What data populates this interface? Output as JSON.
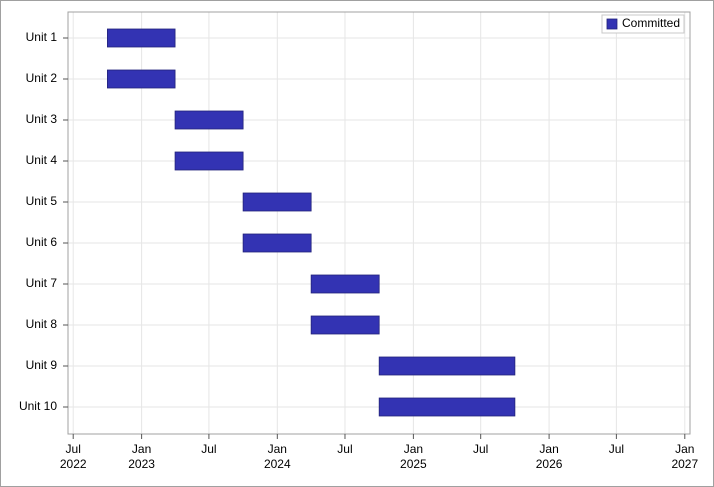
{
  "chart_data": {
    "type": "gantt",
    "categories": [
      "Unit 1",
      "Unit 2",
      "Unit 3",
      "Unit 4",
      "Unit 5",
      "Unit 6",
      "Unit 7",
      "Unit 8",
      "Unit 9",
      "Unit 10"
    ],
    "series": [
      {
        "name": "Committed",
        "color": "#3333b3",
        "start": [
          "2022-10-01",
          "2022-10-01",
          "2023-04-01",
          "2023-04-01",
          "2023-10-01",
          "2023-10-01",
          "2024-04-01",
          "2024-04-01",
          "2024-10-01",
          "2024-10-01"
        ],
        "end": [
          "2023-04-01",
          "2023-04-01",
          "2023-10-01",
          "2023-10-01",
          "2024-04-01",
          "2024-04-01",
          "2024-10-01",
          "2024-10-01",
          "2025-10-01",
          "2025-10-01"
        ]
      }
    ],
    "xlim": [
      "2022-06-17",
      "2027-01-15"
    ],
    "xticks": [
      {
        "value": "2022-07-01",
        "label": [
          "Jul",
          "2022"
        ]
      },
      {
        "value": "2023-01-01",
        "label": [
          "Jan",
          "2023"
        ]
      },
      {
        "value": "2023-07-01",
        "label": [
          "Jul"
        ]
      },
      {
        "value": "2024-01-01",
        "label": [
          "Jan",
          "2024"
        ]
      },
      {
        "value": "2024-07-01",
        "label": [
          "Jul"
        ]
      },
      {
        "value": "2025-01-01",
        "label": [
          "Jan",
          "2025"
        ]
      },
      {
        "value": "2025-07-01",
        "label": [
          "Jul"
        ]
      },
      {
        "value": "2026-01-01",
        "label": [
          "Jan",
          "2026"
        ]
      },
      {
        "value": "2026-07-01",
        "label": [
          "Jul"
        ]
      },
      {
        "value": "2027-01-01",
        "label": [
          "Jan",
          "2027"
        ]
      }
    ],
    "grid": true,
    "legend": "top-right"
  }
}
